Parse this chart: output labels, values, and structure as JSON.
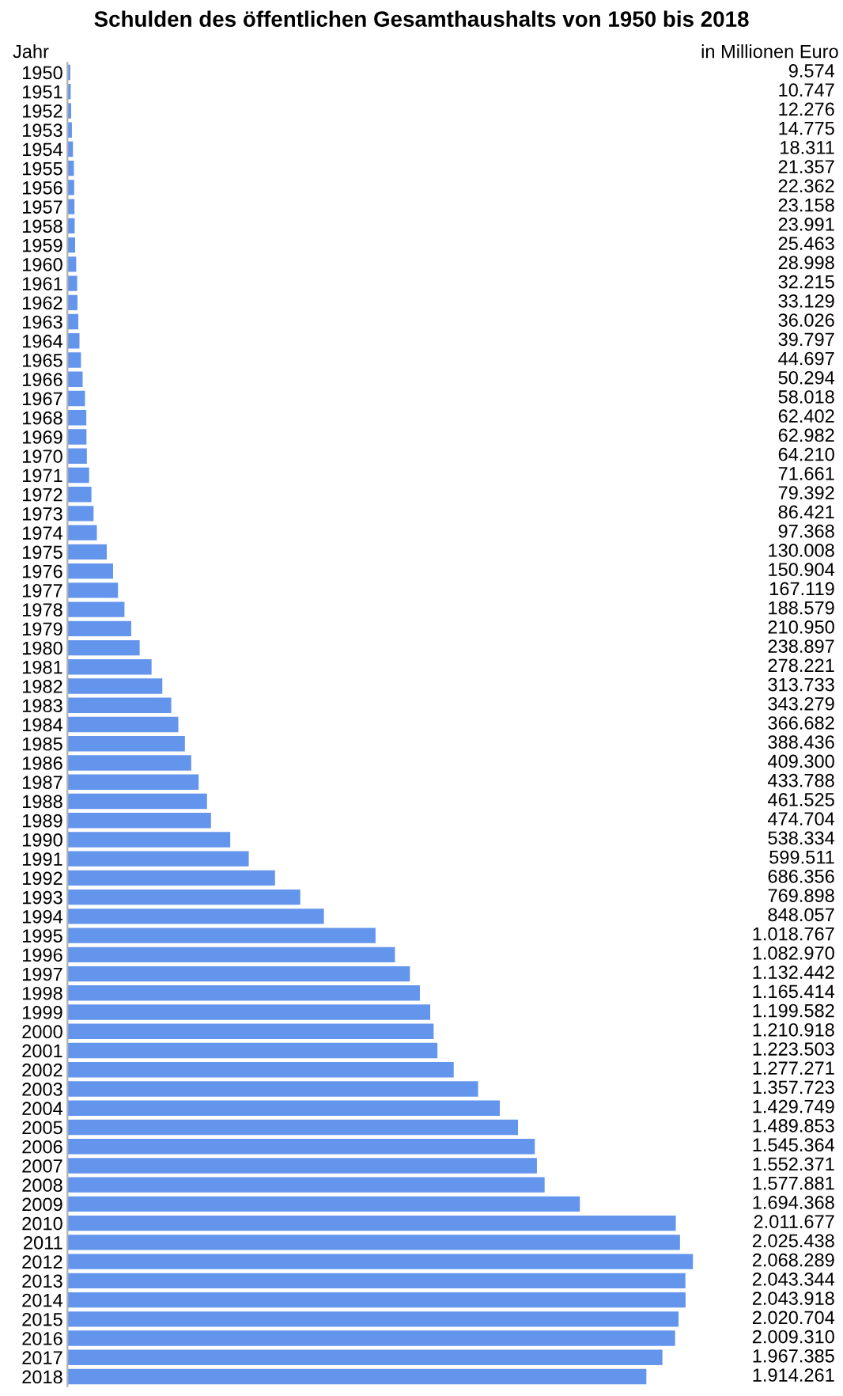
{
  "chart_data": {
    "type": "bar",
    "orientation": "horizontal",
    "title": "Schulden des öffentlichen Gesamthaushalts von 1950 bis 2018",
    "ylabel": "Jahr",
    "annotations": [
      "in Millionen Euro"
    ],
    "tick_labels": "y",
    "color": "#6495ed",
    "categories": [
      "1950",
      "1951",
      "1952",
      "1953",
      "1954",
      "1955",
      "1956",
      "1957",
      "1958",
      "1959",
      "1960",
      "1961",
      "1962",
      "1963",
      "1964",
      "1965",
      "1966",
      "1967",
      "1968",
      "1969",
      "1970",
      "1971",
      "1972",
      "1973",
      "1974",
      "1975",
      "1976",
      "1977",
      "1978",
      "1979",
      "1980",
      "1981",
      "1982",
      "1983",
      "1984",
      "1985",
      "1986",
      "1987",
      "1988",
      "1989",
      "1990",
      "1991",
      "1992",
      "1993",
      "1994",
      "1995",
      "1996",
      "1997",
      "1998",
      "1999",
      "2000",
      "2001",
      "2002",
      "2003",
      "2004",
      "2005",
      "2006",
      "2007",
      "2008",
      "2009",
      "2010",
      "2011",
      "2012",
      "2013",
      "2014",
      "2015",
      "2016",
      "2017",
      "2018"
    ],
    "values": [
      9574,
      10747,
      12276,
      14775,
      18311,
      21357,
      22362,
      23158,
      23991,
      25463,
      28998,
      32215,
      33129,
      36026,
      39797,
      44697,
      50294,
      58018,
      62402,
      62982,
      64210,
      71661,
      79392,
      86421,
      97368,
      130008,
      150904,
      167119,
      188579,
      210950,
      238897,
      278221,
      313733,
      343279,
      366682,
      388436,
      409300,
      433788,
      461525,
      474704,
      538334,
      599511,
      686356,
      769898,
      848057,
      1018767,
      1082970,
      1132442,
      1165414,
      1199582,
      1210918,
      1223503,
      1277271,
      1357723,
      1429749,
      1489853,
      1545364,
      1552371,
      1577881,
      1694368,
      2011677,
      2025438,
      2068289,
      2043344,
      2043918,
      2020704,
      2009310,
      1967385,
      1914261
    ],
    "value_labels": [
      "9.574",
      "10.747",
      "12.276",
      "14.775",
      "18.311",
      "21.357",
      "22.362",
      "23.158",
      "23.991",
      "25.463",
      "28.998",
      "32.215",
      "33.129",
      "36.026",
      "39.797",
      "44.697",
      "50.294",
      "58.018",
      "62.402",
      "62.982",
      "64.210",
      "71.661",
      "79.392",
      "86.421",
      "97.368",
      "130.008",
      "150.904",
      "167.119",
      "188.579",
      "210.950",
      "238.897",
      "278.221",
      "313.733",
      "343.279",
      "366.682",
      "388.436",
      "409.300",
      "433.788",
      "461.525",
      "474.704",
      "538.334",
      "599.511",
      "686.356",
      "769.898",
      "848.057",
      "1.018.767",
      "1.082.970",
      "1.132.442",
      "1.165.414",
      "1.199.582",
      "1.210.918",
      "1.223.503",
      "1.277.271",
      "1.357.723",
      "1.429.749",
      "1.489.853",
      "1.545.364",
      "1.552.371",
      "1.577.881",
      "1.694.368",
      "2.011.677",
      "2.025.438",
      "2.068.289",
      "2.043.344",
      "2.043.918",
      "2.020.704",
      "2.009.310",
      "1.967.385",
      "1.914.261"
    ]
  }
}
